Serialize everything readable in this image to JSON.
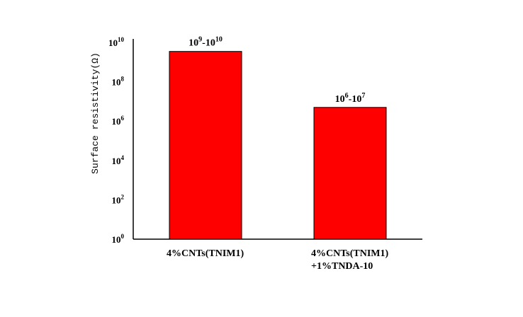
{
  "chart_data": {
    "type": "bar",
    "yscale": "log",
    "ylim": [
      1,
      10000000000
    ],
    "ylabel": "Surface resistivity(Ω)",
    "xlabel": "",
    "title": "",
    "y_ticks": [
      {
        "base": "10",
        "exp": "0",
        "value": 1
      },
      {
        "base": "10",
        "exp": "2",
        "value": 100
      },
      {
        "base": "10",
        "exp": "4",
        "value": 10000
      },
      {
        "base": "10",
        "exp": "6",
        "value": 1000000
      },
      {
        "base": "10",
        "exp": "8",
        "value": 100000000
      },
      {
        "base": "10",
        "exp": "10",
        "value": 10000000000
      }
    ],
    "categories": [
      [
        "4%CNTs(TNIM1)"
      ],
      [
        "4%CNTs(TNIM1)",
        "+1%TNDA-10"
      ]
    ],
    "values": [
      3500000000,
      5000000
    ],
    "data_labels": [
      {
        "a": "10",
        "a_exp": "9",
        "sep": "-",
        "b": "10",
        "b_exp": "10"
      },
      {
        "a": "10",
        "a_exp": "6",
        "sep": "-",
        "b": "10",
        "b_exp": "7"
      }
    ],
    "colors": {
      "bar": "#ff0000",
      "bar_edge": "#000000",
      "axis": "#000000"
    },
    "grid": false,
    "legend": "none"
  }
}
